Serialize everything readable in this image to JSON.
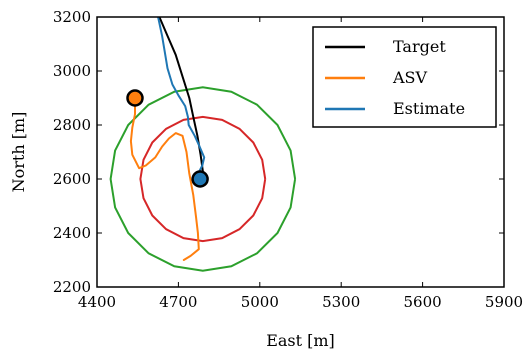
{
  "chart_data": {
    "type": "line",
    "xlabel": "East [m]",
    "ylabel": "North [m]",
    "xlim": [
      4400,
      5900
    ],
    "ylim": [
      2200,
      3200
    ],
    "xticks": [
      4400,
      4700,
      5000,
      5300,
      5600,
      5900
    ],
    "yticks": [
      2200,
      2400,
      2600,
      2800,
      3000,
      3200
    ],
    "grid": false,
    "legend_position": "top-right",
    "series": [
      {
        "name": "Target",
        "color": "#000000",
        "points": [
          [
            4630,
            3200
          ],
          [
            4660,
            3130
          ],
          [
            4690,
            3060
          ],
          [
            4715,
            2980
          ],
          [
            4740,
            2900
          ],
          [
            4755,
            2830
          ],
          [
            4770,
            2760
          ],
          [
            4782,
            2690
          ],
          [
            4790,
            2630
          ],
          [
            4787,
            2610
          ]
        ]
      },
      {
        "name": "ASV",
        "color": "#ff7f0e",
        "points": [
          [
            4540,
            2900
          ],
          [
            4540,
            2840
          ],
          [
            4530,
            2790
          ],
          [
            4525,
            2740
          ],
          [
            4530,
            2690
          ],
          [
            4555,
            2640
          ],
          [
            4580,
            2650
          ],
          [
            4615,
            2680
          ],
          [
            4640,
            2720
          ],
          [
            4665,
            2750
          ],
          [
            4690,
            2770
          ],
          [
            4715,
            2760
          ],
          [
            4730,
            2700
          ],
          [
            4740,
            2620
          ],
          [
            4755,
            2540
          ],
          [
            4765,
            2460
          ],
          [
            4772,
            2400
          ],
          [
            4775,
            2340
          ],
          [
            4745,
            2315
          ],
          [
            4720,
            2300
          ]
        ]
      },
      {
        "name": "Estimate",
        "color": "#1f77b4",
        "points": [
          [
            4625,
            3200
          ],
          [
            4640,
            3130
          ],
          [
            4650,
            3070
          ],
          [
            4660,
            3010
          ],
          [
            4678,
            2950
          ],
          [
            4700,
            2910
          ],
          [
            4725,
            2870
          ],
          [
            4735,
            2830
          ],
          [
            4738,
            2800
          ],
          [
            4760,
            2760
          ],
          [
            4778,
            2720
          ],
          [
            4795,
            2680
          ],
          [
            4788,
            2650
          ],
          [
            4775,
            2625
          ]
        ]
      }
    ],
    "circles": [
      {
        "color": "#d62728",
        "center": [
          4790,
          2600
        ],
        "radius": 230
      },
      {
        "color": "#2ca02c",
        "center": [
          4790,
          2600
        ],
        "radius": 340
      }
    ],
    "markers": [
      {
        "color": "#ff7f0e",
        "point": [
          4540,
          2900
        ]
      },
      {
        "color": "#1f77b4",
        "point": [
          4780,
          2600
        ]
      }
    ]
  }
}
